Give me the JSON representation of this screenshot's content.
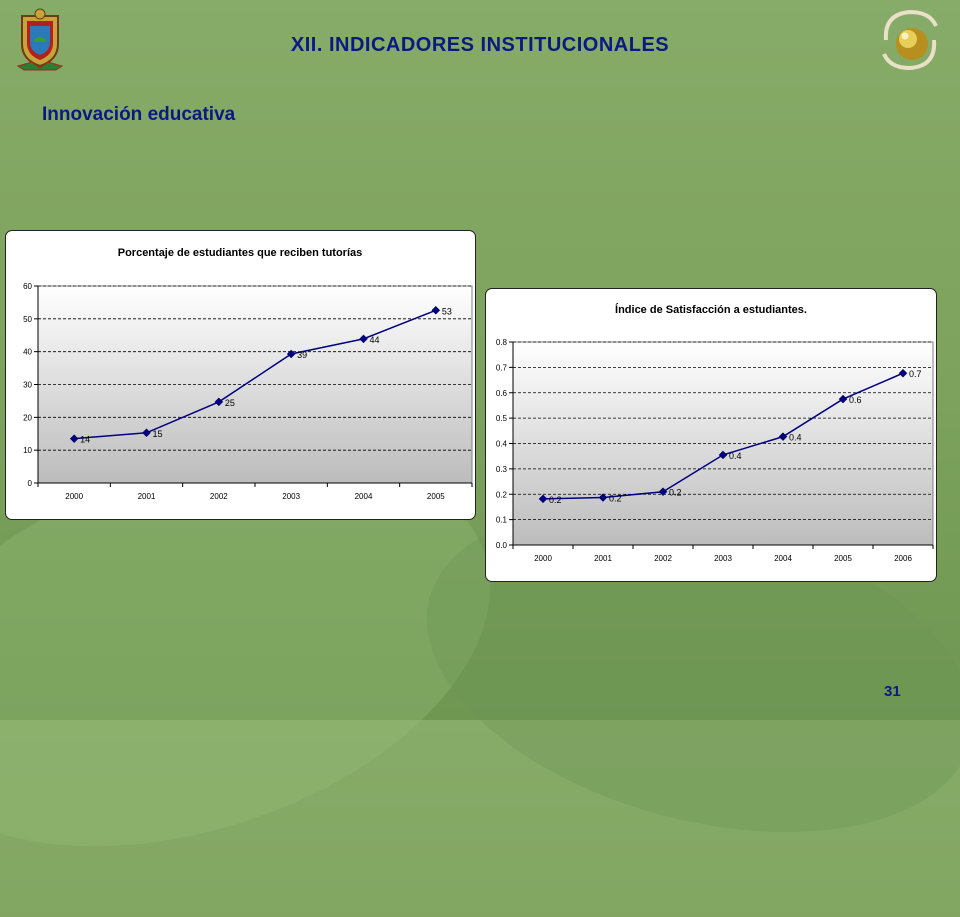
{
  "slide": {
    "title": "XII.  INDICADORES INSTITUCIONALES",
    "subtitle": "Innovación educativa",
    "page_number": "31"
  },
  "colors": {
    "background": "#7ca25d",
    "heading": "#0b1a80",
    "series_line": "#000080",
    "marker": "#000080"
  },
  "logos": {
    "left": "university-crest-icon",
    "right": "gold-sphere-logo-icon"
  },
  "chart_data": [
    {
      "type": "line",
      "title": "Porcentaje de estudiantes que reciben tutorías",
      "categories": [
        "2000",
        "2001",
        "2002",
        "2003",
        "2004",
        "2005"
      ],
      "values": [
        13.5,
        15.3,
        24.7,
        39.3,
        43.9,
        52.6
      ],
      "data_labels": [
        "14",
        "15",
        "25",
        "39",
        "44",
        "53"
      ],
      "ylim": [
        0,
        60
      ],
      "yticks": [
        "0",
        "10",
        "20",
        "30",
        "40",
        "50",
        "60"
      ],
      "grid": true,
      "legend": "none"
    },
    {
      "type": "line",
      "title": "Índice de Satisfacción a estudiantes.",
      "categories": [
        "2000",
        "2001",
        "2002",
        "2003",
        "2004",
        "2005",
        "2006"
      ],
      "values": [
        0.182,
        0.187,
        0.21,
        0.355,
        0.427,
        0.575,
        0.677
      ],
      "data_labels": [
        "0.2",
        "0.2",
        "0.2",
        "0.4",
        "0.4",
        "0.6",
        "0.7"
      ],
      "ylim": [
        0,
        0.8
      ],
      "yticks": [
        "0.0",
        "0.1",
        "0.2",
        "0.3",
        "0.4",
        "0.5",
        "0.6",
        "0.7",
        "0.8"
      ],
      "grid": true,
      "legend": "none"
    }
  ]
}
